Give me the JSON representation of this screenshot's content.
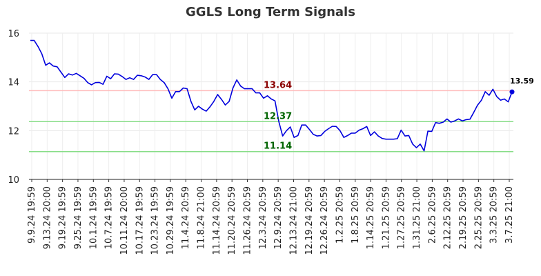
{
  "chart_data": {
    "type": "line",
    "title": "GGLS Long Term Signals",
    "xlabel": "",
    "ylabel": "",
    "ylim": [
      10,
      16
    ],
    "yticks": [
      10,
      12,
      14,
      16
    ],
    "grid": true,
    "x_tick_labels": [
      "9.9.24 19:59",
      "9.13.24 20:00",
      "9.19.24 19:59",
      "9.25.24 19:59",
      "10.1.24 19:59",
      "10.7.24 19:59",
      "10.11.24 20:00",
      "10.17.24 19:59",
      "10.23.24 19:59",
      "10.29.24 19:59",
      "11.4.24 20:59",
      "11.8.24 21:00",
      "11.14.24 20:59",
      "11.20.24 20:59",
      "11.26.24 20:59",
      "12.3.24 20:59",
      "12.9.24 20:59",
      "12.13.24 21:00",
      "12.19.24 20:59",
      "12.26.24 20:59",
      "1.2.25 20:59",
      "1.8.25 20:59",
      "1.14.25 20:59",
      "1.21.25 20:59",
      "1.27.25 20:59",
      "1.31.25 21:00",
      "2.6.25 20:59",
      "2.12.25 20:59",
      "2.19.25 20:59",
      "2.25.25 20:59",
      "3.3.25 20:59",
      "3.7.25 21:00"
    ],
    "series": [
      {
        "color": "#0000dd",
        "values": [
          15.7,
          15.7,
          15.45,
          15.15,
          14.68,
          14.78,
          14.65,
          14.62,
          14.4,
          14.18,
          14.33,
          14.28,
          14.35,
          14.25,
          14.15,
          13.97,
          13.88,
          13.97,
          13.98,
          13.9,
          14.23,
          14.13,
          14.33,
          14.32,
          14.22,
          14.1,
          14.17,
          14.1,
          14.27,
          14.25,
          14.2,
          14.1,
          14.3,
          14.3,
          14.1,
          13.97,
          13.72,
          13.33,
          13.6,
          13.6,
          13.75,
          13.72,
          13.2,
          12.85,
          13.0,
          12.88,
          12.8,
          12.98,
          13.2,
          13.48,
          13.28,
          13.05,
          13.2,
          13.75,
          14.08,
          13.83,
          13.72,
          13.72,
          13.72,
          13.55,
          13.55,
          13.33,
          13.43,
          13.3,
          13.22,
          12.37,
          11.78,
          12.0,
          12.15,
          11.72,
          11.8,
          12.23,
          12.23,
          12.05,
          11.85,
          11.78,
          11.8,
          11.97,
          12.08,
          12.18,
          12.17,
          12.0,
          11.72,
          11.8,
          11.9,
          11.9,
          12.02,
          12.08,
          12.17,
          11.8,
          11.95,
          11.78,
          11.68,
          11.65,
          11.65,
          11.65,
          11.67,
          12.02,
          11.78,
          11.8,
          11.45,
          11.3,
          11.45,
          11.17,
          11.98,
          11.97,
          12.33,
          12.3,
          12.35,
          12.48,
          12.35,
          12.4,
          12.48,
          12.4,
          12.45,
          12.47,
          12.75,
          13.05,
          13.25,
          13.6,
          13.45,
          13.7,
          13.4,
          13.25,
          13.3,
          13.18,
          13.59
        ]
      }
    ],
    "hlines": [
      {
        "value": 13.64,
        "label": "13.64",
        "line_color": "#ffbbbb",
        "text_color": "#8b0000"
      },
      {
        "value": 12.37,
        "label": "12.37",
        "line_color": "#88dd88",
        "text_color": "#006400"
      },
      {
        "value": 11.14,
        "label": "11.14",
        "line_color": "#88dd88",
        "text_color": "#006400"
      }
    ],
    "last_value": {
      "value": 13.59,
      "label": "13.59",
      "marker_color": "#0000dd"
    }
  }
}
